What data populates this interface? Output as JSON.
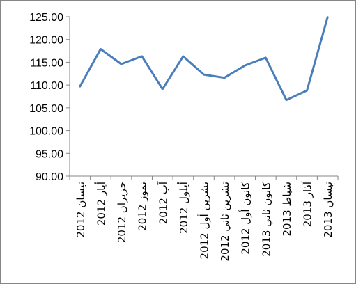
{
  "chart_data": {
    "type": "line",
    "title": "",
    "xlabel": "",
    "ylabel": "",
    "categories": [
      "نيسان 2012",
      "أيار 2012",
      "حزيران 2012",
      "تموز 2012",
      "آب 2012",
      "أيلول 2012",
      "تشرين أول 2012",
      "تشرين ثاني 2012",
      "كانون أول 2012",
      "كانون ثاني 2013",
      "شباط 2013",
      "آذار 2013",
      "نيسان 2013"
    ],
    "series": [
      {
        "values": [
          109.7,
          117.9,
          114.6,
          116.3,
          109.1,
          116.3,
          112.3,
          111.6,
          114.3,
          116.0,
          106.7,
          108.8,
          124.9
        ]
      }
    ],
    "ylim": [
      90,
      125
    ],
    "yticks": [
      "90.00",
      "95.00",
      "100.00",
      "105.00",
      "110.00",
      "115.00",
      "120.00",
      "125.00"
    ],
    "grid": false,
    "legend": "none",
    "line_color": "#4a7ebb"
  }
}
